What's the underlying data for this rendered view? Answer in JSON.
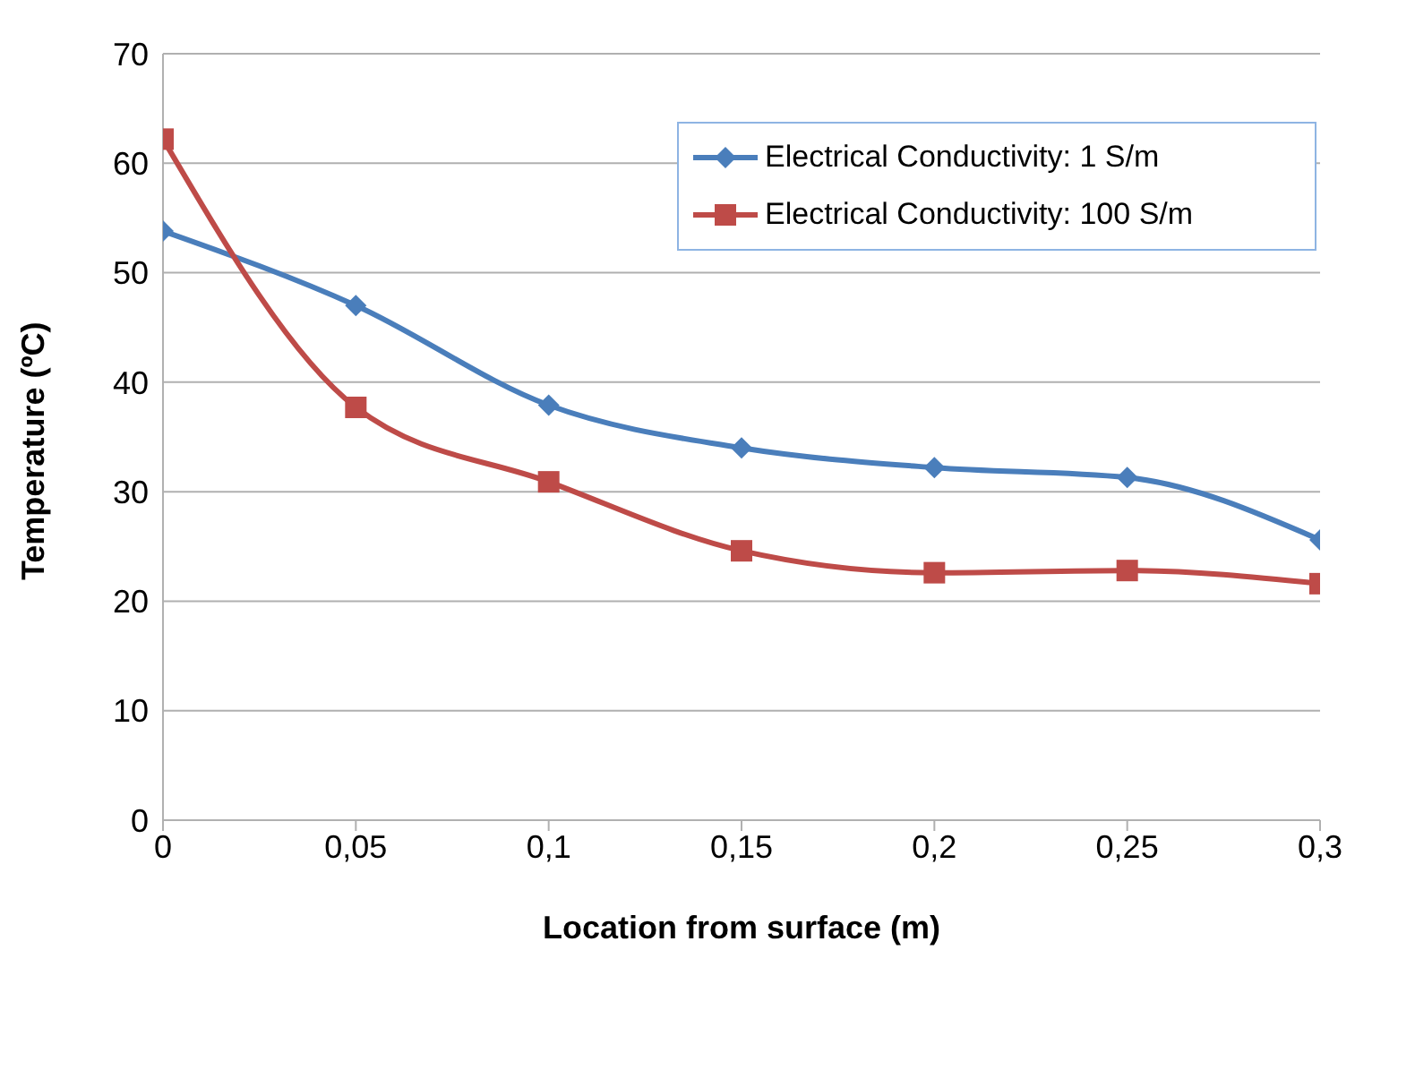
{
  "chart_data": {
    "type": "line",
    "xlabel": "Location from surface (m)",
    "ylabel": "Temperature (ºC)",
    "x": [
      0,
      0.05,
      0.1,
      0.15,
      0.2,
      0.25,
      0.3
    ],
    "series": [
      {
        "name": "Electrical Conductivity: 1 S/m",
        "color": "#4a7ebb",
        "marker": "diamond",
        "values": [
          53.8,
          47.0,
          37.9,
          34.0,
          32.2,
          31.3,
          25.6
        ]
      },
      {
        "name": "Electrical Conductivity: 100 S/m",
        "color": "#be4b48",
        "marker": "square",
        "values": [
          62.2,
          37.7,
          30.9,
          24.6,
          22.6,
          22.8,
          21.6
        ]
      }
    ],
    "xlim": [
      0,
      0.3
    ],
    "xticks": [
      0,
      {
        "value": 0.05,
        "label": "0,05"
      },
      {
        "value": 0.1,
        "label": "0,1"
      },
      {
        "value": 0.15,
        "label": "0,15"
      },
      {
        "value": 0.2,
        "label": "0,2"
      },
      {
        "value": 0.25,
        "label": "0,25"
      },
      {
        "value": 0.3,
        "label": "0,3"
      }
    ],
    "ylim": [
      0,
      70
    ],
    "yticks": [
      0,
      10,
      20,
      30,
      40,
      50,
      60,
      70
    ],
    "grid": "y",
    "legend": "top right",
    "line_style": "solid"
  }
}
